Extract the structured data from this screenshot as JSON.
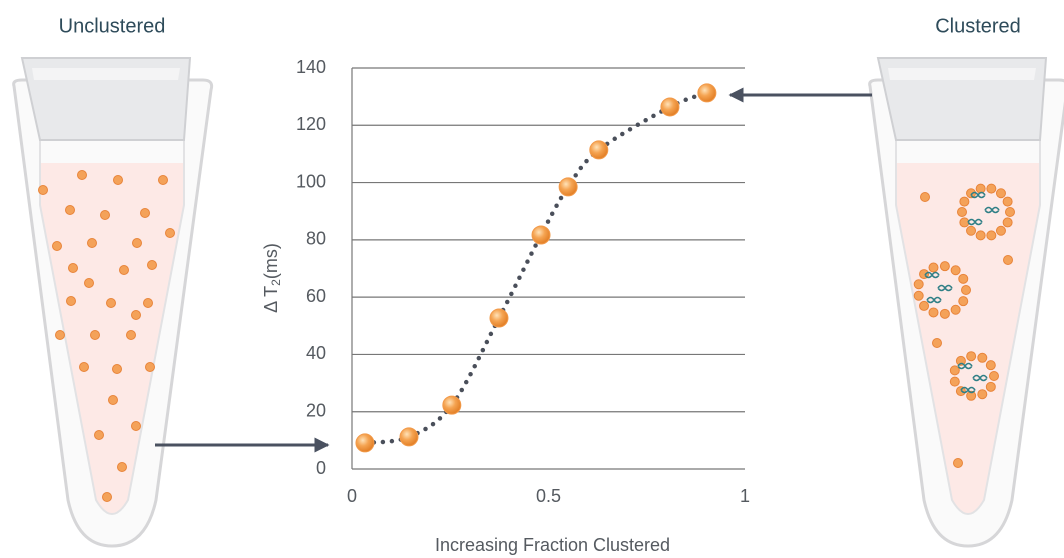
{
  "left_label": "Unclustered",
  "right_label": "Clustered",
  "chart_data": {
    "type": "scatter",
    "xlabel": "Increasing Fraction Clustered",
    "ylabel": [
      "Δ T",
      "2",
      "(ms)"
    ],
    "x": [
      0.033,
      0.145,
      0.254,
      0.374,
      0.481,
      0.55,
      0.628,
      0.809,
      0.903
    ],
    "values": [
      9.1,
      11.2,
      22.3,
      52.7,
      81.7,
      98.5,
      111.4,
      126.4,
      131.3
    ],
    "color": "#f29a4a",
    "curve_color": "#4a4f5a",
    "xlim": [
      0,
      1
    ],
    "xticks": [
      0,
      0.5,
      1
    ],
    "ylim": [
      0,
      140
    ],
    "yticks": [
      0,
      20,
      40,
      60,
      80,
      100,
      120,
      140
    ],
    "grid": true
  }
}
